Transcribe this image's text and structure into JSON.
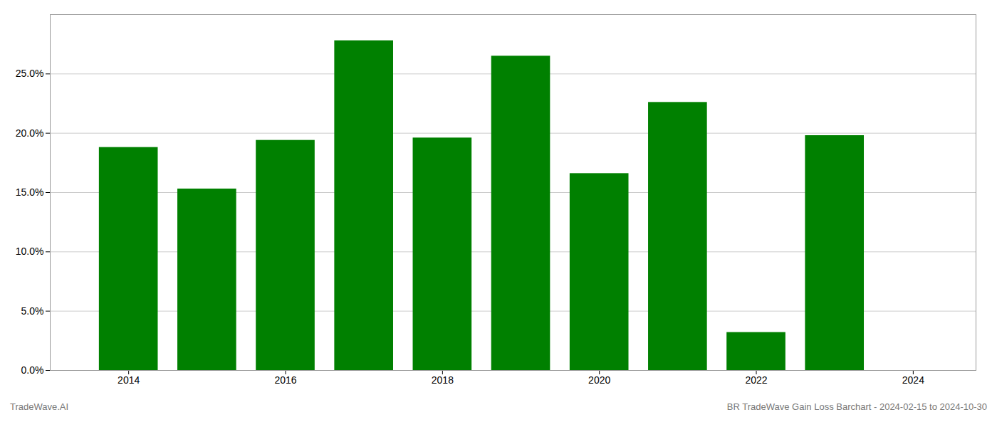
{
  "chart_data": {
    "type": "bar",
    "x": [
      2014,
      2015,
      2016,
      2017,
      2018,
      2019,
      2020,
      2021,
      2022,
      2023
    ],
    "values": [
      0.188,
      0.153,
      0.194,
      0.278,
      0.196,
      0.265,
      0.166,
      0.226,
      0.032,
      0.198
    ],
    "color": "#008000",
    "xlim": [
      2013.0,
      2024.8
    ],
    "xticks": [
      2014,
      2016,
      2018,
      2020,
      2022,
      2024
    ],
    "ylim": [
      0,
      0.3
    ],
    "yticks": [
      {
        "value": 0.0,
        "label": "0.0%"
      },
      {
        "value": 0.05,
        "label": "5.0%"
      },
      {
        "value": 0.1,
        "label": "10.0%"
      },
      {
        "value": 0.15,
        "label": "15.0%"
      },
      {
        "value": 0.2,
        "label": "20.0%"
      },
      {
        "value": 0.25,
        "label": "25.0%"
      }
    ],
    "grid": "y",
    "annotations": [
      "TradeWave.AI",
      "BR TradeWave Gain Loss Barchart - 2024-02-15 to 2024-10-30"
    ]
  }
}
